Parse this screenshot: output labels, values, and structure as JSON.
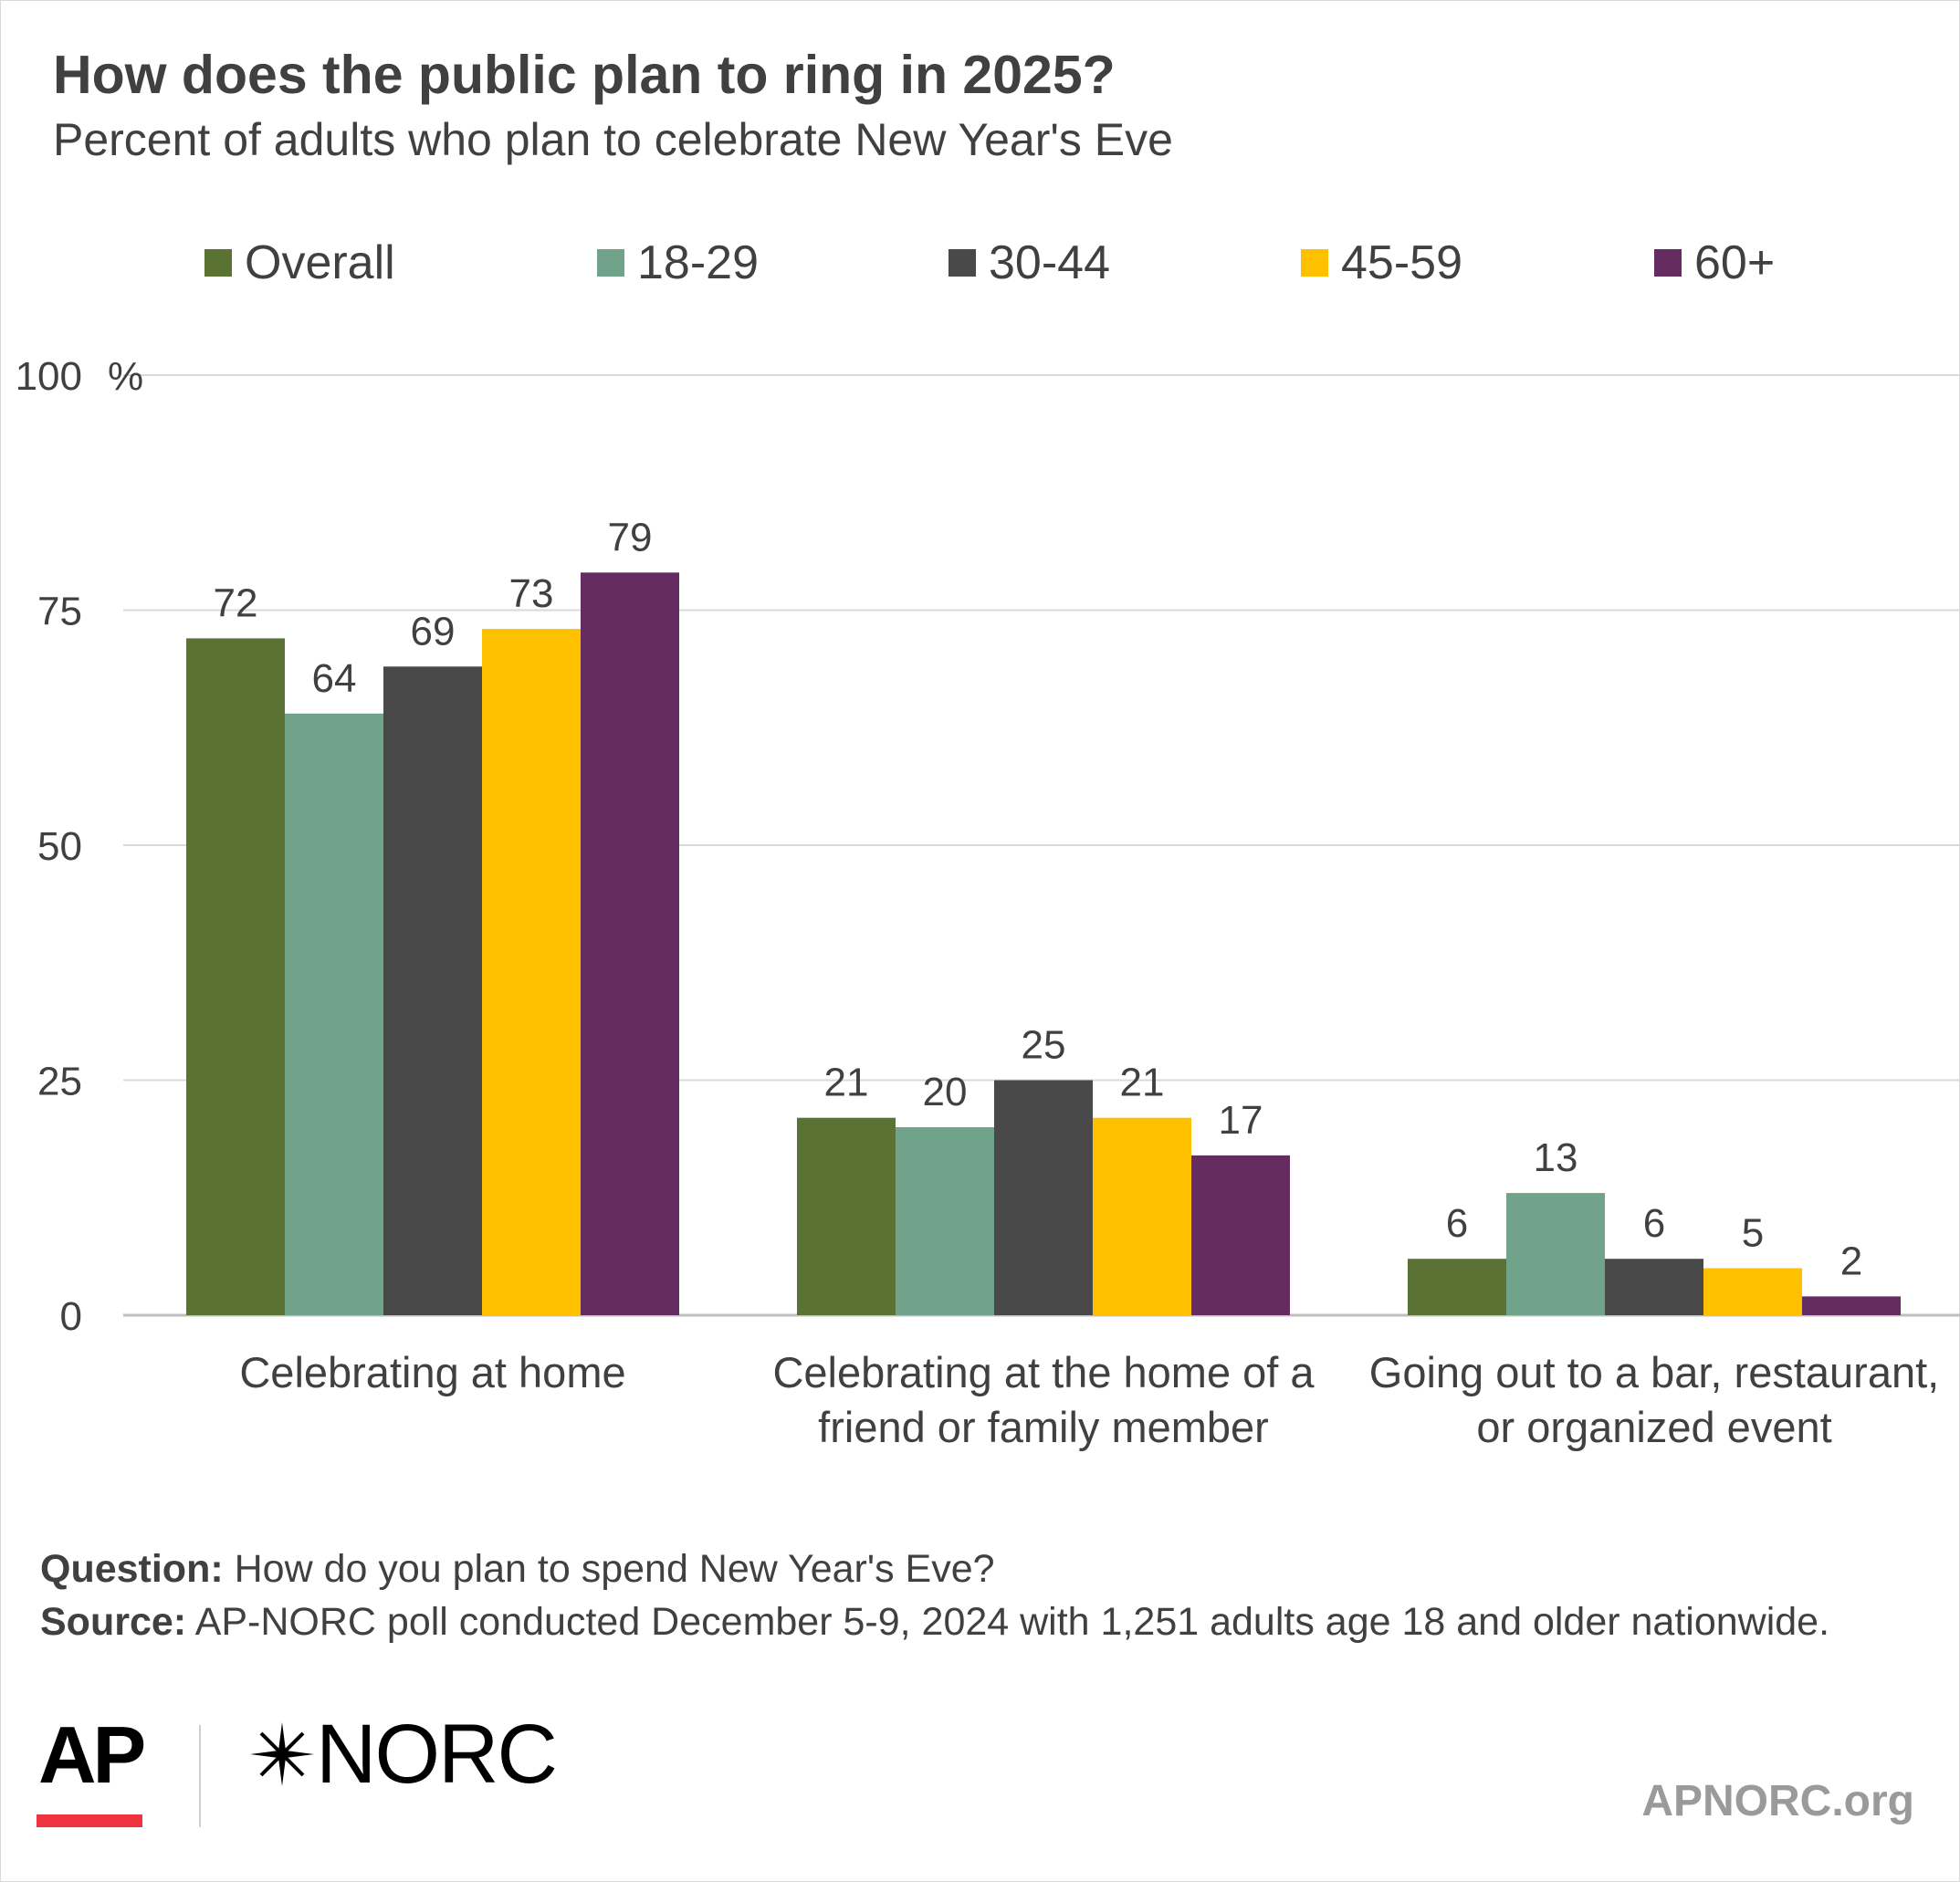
{
  "header": {
    "title": "How does the public plan to ring in 2025?",
    "subtitle": "Percent of adults who plan to celebrate New Year's Eve"
  },
  "chart_data": {
    "type": "bar",
    "categories": [
      [
        "Celebrating at home"
      ],
      [
        "Celebrating at the home of a",
        "friend or family member"
      ],
      [
        "Going out to a bar, restaurant,",
        "or organized event"
      ]
    ],
    "series": [
      {
        "name": "Overall",
        "color": "#5a7335",
        "values": [
          72,
          21,
          6
        ]
      },
      {
        "name": "18-29",
        "color": "#71a38a",
        "values": [
          64,
          20,
          13
        ]
      },
      {
        "name": "30-44",
        "color": "#494949",
        "values": [
          69,
          25,
          6
        ]
      },
      {
        "name": "45-59",
        "color": "#ffc000",
        "values": [
          73,
          21,
          5
        ]
      },
      {
        "name": "60+",
        "color": "#642c60",
        "values": [
          79,
          17,
          2
        ]
      }
    ],
    "yticks": [
      "0",
      "25",
      "50",
      "75",
      "100"
    ],
    "ytick_values": [
      0,
      25,
      50,
      75,
      100
    ],
    "y_unit": "%",
    "ylim": [
      0,
      100
    ],
    "grid": true,
    "legend_position": "top"
  },
  "footer": {
    "question_label": "Question:",
    "question_text": "How do you plan to spend New Year's Eve?",
    "source_label": "Source:",
    "source_text": "AP-NORC poll conducted December 5-9, 2024 with 1,251 adults age 18 and older nationwide."
  },
  "logos": {
    "ap": "AP",
    "norc": "NORC",
    "norc_icon": "norc-star-icon",
    "website": "APNORC.org",
    "ap_accent_color": "#ef3340"
  }
}
